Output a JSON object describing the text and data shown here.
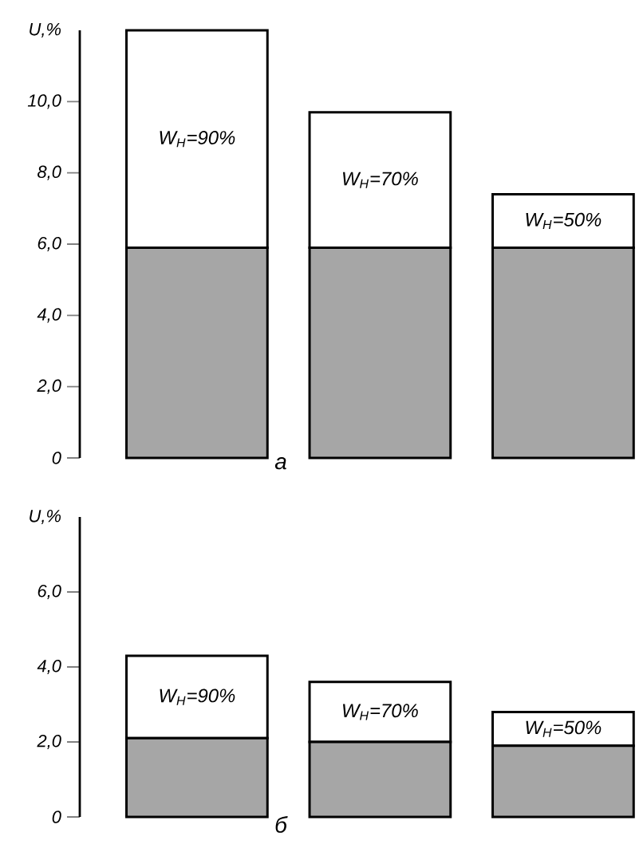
{
  "chart_data": [
    {
      "type": "bar",
      "title": "а",
      "ylabel": "U,%",
      "stacked": true,
      "categories": [
        null,
        null,
        null
      ],
      "annotations": [
        "W$_{Н}$=90%",
        "W$_{Н}$=70%",
        "W$_{Н}$=50%"
      ],
      "series": [
        {
          "color": "#a6a6a6",
          "values": [
            5.9,
            5.9,
            5.9
          ]
        },
        {
          "color": "#ffffff",
          "values": [
            6.1,
            3.8,
            1.5
          ]
        }
      ],
      "ylim": [
        0,
        12
      ],
      "yticks": [
        0,
        {
          "value": 2,
          "label": "2,0"
        },
        {
          "value": 4,
          "label": "4,0"
        },
        {
          "value": 6,
          "label": "6,0"
        },
        {
          "value": 8,
          "label": "8,0"
        },
        {
          "value": 10,
          "label": "10,0"
        }
      ]
    },
    {
      "type": "bar",
      "title": "б",
      "ylabel": "U,%",
      "stacked": true,
      "categories": [
        null,
        null,
        null
      ],
      "annotations": [
        "W$_{Н}$=90%",
        "W$_{Н}$=70%",
        "W$_{Н}$=50%"
      ],
      "series": [
        {
          "color": "#a6a6a6",
          "values": [
            2.1,
            2.0,
            1.9
          ]
        },
        {
          "color": "#ffffff",
          "values": [
            2.2,
            1.6,
            0.9
          ]
        }
      ],
      "ylim": [
        0,
        8
      ],
      "yticks": [
        0,
        {
          "value": 2,
          "label": "2,0"
        },
        {
          "value": 4,
          "label": "4,0"
        },
        {
          "value": 6,
          "label": "6,0"
        }
      ]
    }
  ]
}
